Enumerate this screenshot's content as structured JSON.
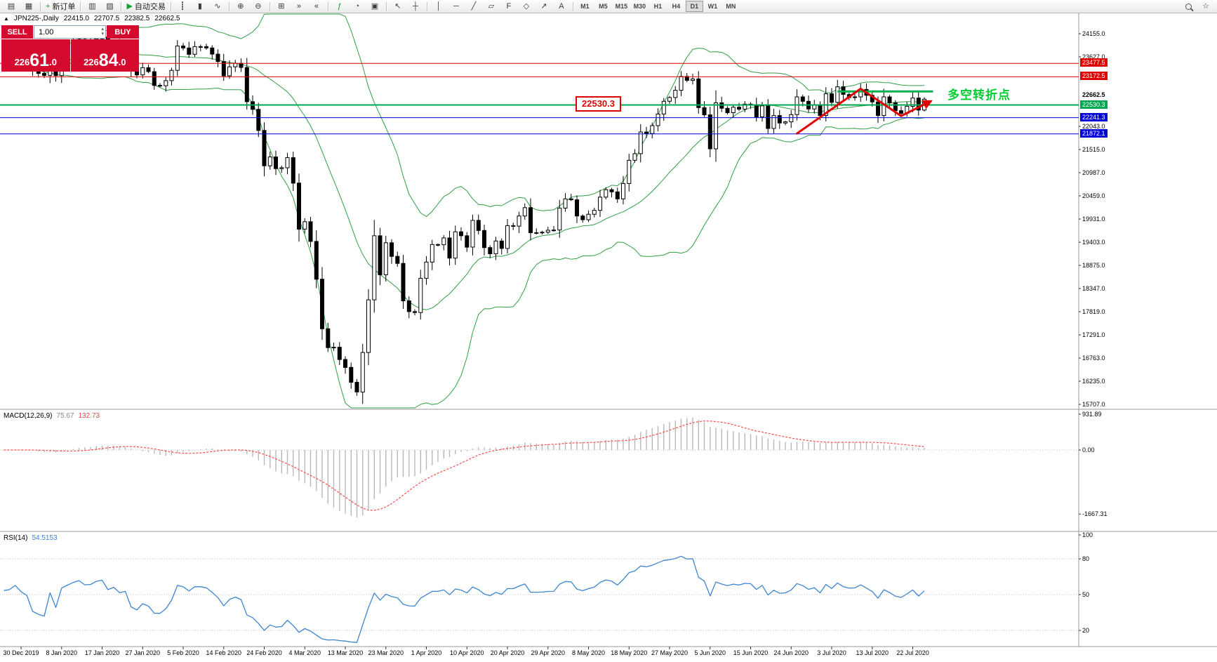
{
  "toolbar": {
    "items": [
      {
        "name": "new-chart",
        "glyph": "▤"
      },
      {
        "name": "chart-profiles",
        "glyph": "▦"
      },
      {
        "sep": true
      },
      {
        "name": "new-order",
        "glyph": "+",
        "glyph_color": "#18a038",
        "label": "新订单"
      },
      {
        "sep": true
      },
      {
        "name": "market-watch",
        "glyph": "▥"
      },
      {
        "name": "data-window",
        "glyph": "▧"
      },
      {
        "sep": true
      },
      {
        "name": "autotrading",
        "glyph": "▶",
        "glyph_color": "#18a038",
        "label": "自动交易"
      },
      {
        "sep": true
      },
      {
        "name": "bars-chart-type",
        "glyph": "┋"
      },
      {
        "name": "candles-chart-type",
        "glyph": "▮"
      },
      {
        "name": "line-chart-type",
        "glyph": "∿"
      },
      {
        "sep": true
      },
      {
        "name": "zoom-in",
        "glyph": "⊕"
      },
      {
        "name": "zoom-out",
        "glyph": "⊖"
      },
      {
        "sep": true
      },
      {
        "name": "tile-windows",
        "glyph": "⊞"
      },
      {
        "name": "auto-scroll",
        "glyph": "»"
      },
      {
        "name": "chart-shift",
        "glyph": "«"
      },
      {
        "sep": true
      },
      {
        "name": "indicators",
        "glyph": "ƒ",
        "glyph_color": "#18a038"
      },
      {
        "name": "periods",
        "glyph": "◔"
      },
      {
        "name": "templates",
        "glyph": "▣"
      },
      {
        "sep": true
      },
      {
        "name": "cursor",
        "glyph": "↖"
      },
      {
        "name": "crosshair",
        "glyph": "┼"
      },
      {
        "sep": true
      },
      {
        "name": "vertical-line-tool",
        "glyph": "│"
      },
      {
        "name": "horizontal-line-tool",
        "glyph": "─"
      },
      {
        "name": "trendline-tool",
        "glyph": "╱"
      },
      {
        "name": "channel-tool",
        "glyph": "▱"
      },
      {
        "name": "fibonacci-tool",
        "glyph": "F"
      },
      {
        "name": "shapes-tool",
        "glyph": "◇"
      },
      {
        "name": "arrows-tool",
        "glyph": "↗"
      },
      {
        "name": "text-tool",
        "glyph": "A"
      },
      {
        "sep": true
      }
    ],
    "timeframes": [
      "M1",
      "M5",
      "M15",
      "M30",
      "H1",
      "H4",
      "D1",
      "W1",
      "MN"
    ],
    "active_timeframe": "D1",
    "right_items": [
      {
        "name": "search",
        "css": "mag"
      },
      {
        "name": "favorites",
        "glyph": "☆"
      }
    ]
  },
  "trade_panel": {
    "sell_label": "SELL",
    "buy_label": "BUY",
    "volume": "1.00",
    "sell_price": "22661.0",
    "buy_price": "22684.0"
  },
  "chart_header": {
    "collapse_icon": "▲",
    "symbol_timeframe": "JPN225-,Daily",
    "open": "22415.0",
    "high": "22707.5",
    "low": "22382.5",
    "close": "22662.5"
  },
  "indicators": {
    "macd_label": "MACD(12,26,9)",
    "macd_main": "75.67",
    "macd_signal": "132.73",
    "rsi_label": "RSI(14)",
    "rsi_value": "54.5153"
  },
  "price_axis": {
    "ticks": [
      "24155.0",
      "23627.0",
      "22043.0",
      "21515.0",
      "20987.0",
      "20459.0",
      "19931.0",
      "19403.0",
      "18875.0",
      "18347.0",
      "17819.0",
      "17291.0",
      "16763.0",
      "16235.0",
      "15707.0"
    ],
    "close_label": {
      "label": "22662.5",
      "price": 22662.5
    }
  },
  "macd_axis": [
    {
      "label": "931.89",
      "value": 931.89
    },
    {
      "label": "0.00",
      "value": 0
    },
    {
      "label": "-1667.31",
      "value": -1667.31
    }
  ],
  "rsi_axis": [
    {
      "label": "100",
      "value": 100
    },
    {
      "label": "80",
      "value": 80
    },
    {
      "label": "50",
      "value": 50
    },
    {
      "label": "20",
      "value": 20
    }
  ],
  "annotations": {
    "price_label": "22530.3",
    "turning_point": "多空转折点",
    "turning_point_color": "#00cc33",
    "zigzag": {
      "color": "#e00000",
      "points": [
        [
          134,
          21880
        ],
        [
          145,
          22900
        ],
        [
          152,
          22280
        ],
        [
          157,
          22610
        ]
      ]
    },
    "green_segment": {
      "from": 141,
      "to": 157.5,
      "price": 22840,
      "color": "#00b050"
    }
  },
  "chart_data": {
    "type": "candlestick",
    "symbol": "JPN225-",
    "timeframe": "Daily",
    "ohlc": {
      "open": 22415.0,
      "high": 22707.5,
      "low": 22382.5,
      "close": 22662.5
    },
    "first_open": 23690,
    "closes": [
      23650,
      23600,
      23320,
      23250,
      23205,
      23580,
      23200,
      23740,
      23850,
      23950,
      24025,
      23920,
      23930,
      24040,
      24080,
      23860,
      23930,
      23795,
      23830,
      23340,
      23215,
      23380,
      23290,
      22977,
      22970,
      23085,
      23320,
      23875,
      23830,
      23685,
      23860,
      23860,
      23830,
      23690,
      23520,
      23195,
      23400,
      23480,
      23385,
      22605,
      22430,
      21950,
      21143,
      21345,
      21080,
      21100,
      21330,
      20750,
      19700,
      19870,
      19420,
      18560,
      17430,
      17000,
      17010,
      16730,
      16550,
      16210,
      15990,
      16890,
      18090,
      19550,
      18660,
      19390,
      19080,
      18920,
      18065,
      17820,
      17800,
      18580,
      18950,
      19350,
      19345,
      19500,
      19040,
      19640,
      19550,
      19290,
      19900,
      19670,
      19280,
      19140,
      19430,
      19260,
      19780,
      19770,
      20000,
      20190,
      19620,
      19620,
      19630,
      19675,
      19680,
      20180,
      20390,
      20370,
      20000,
      19915,
      20040,
      20130,
      20430,
      20600,
      20550,
      20390,
      20740,
      21270,
      21420,
      21915,
      21880,
      22060,
      22325,
      22615,
      22700,
      22865,
      23180,
      23090,
      23125,
      22470,
      22305,
      21530,
      22580,
      22455,
      22355,
      22480,
      22435,
      22550,
      22535,
      22260,
      22510,
      21995,
      22290,
      22120,
      22145,
      22310,
      22715,
      22615,
      22440,
      22530,
      22290,
      22785,
      22590,
      22945,
      22770,
      22700,
      22715,
      22885,
      22750,
      22600,
      22290,
      22715,
      22580,
      22400,
      22340,
      22500,
      22690,
      22415,
      22662.5
    ],
    "last_candle": {
      "open": 22415.0,
      "high": 22707.5,
      "low": 22382.5,
      "close": 22662.5
    },
    "x_labels": [
      "30 Dec 2019",
      "8 Jan 2020",
      "17 Jan 2020",
      "27 Jan 2020",
      "5 Feb 2020",
      "14 Feb 2020",
      "24 Feb 2020",
      "4 Mar 2020",
      "13 Mar 2020",
      "23 Mar 2020",
      "1 Apr 2020",
      "10 Apr 2020",
      "20 Apr 2020",
      "29 Apr 2020",
      "8 May 2020",
      "18 May 2020",
      "27 May 2020",
      "5 Jun 2020",
      "15 Jun 2020",
      "24 Jun 2020",
      "3 Jul 2020",
      "13 Jul 2020",
      "22 Jul 2020"
    ],
    "label_every": 7,
    "price_lines": [
      {
        "label": "23477.5",
        "price": 23477.5,
        "color": "#e00000",
        "width": 1
      },
      {
        "label": "23172.5",
        "price": 23172.5,
        "color": "#e00000",
        "width": 1
      },
      {
        "label": "22530.3",
        "price": 22530.3,
        "color": "#00a651",
        "width": 2
      },
      {
        "label": "22241.3",
        "price": 22241.3,
        "color": "#0000d8",
        "width": 1
      },
      {
        "label": "21872.1",
        "price": 21872.1,
        "color": "#0000d8",
        "width": 1
      }
    ],
    "bollinger": {
      "period": 20,
      "deviation": 2,
      "color": "#2f9e44"
    },
    "macd": {
      "fast": 12,
      "slow": 26,
      "signal": 9,
      "histogram_color": "#b8b8b8",
      "signal_color": "#ff4d4d"
    },
    "rsi": {
      "period": 14,
      "color": "#3d85d0",
      "levels": [
        80,
        50,
        20
      ]
    },
    "colors": {
      "up": "#ffffff",
      "down": "#000000",
      "outline": "#000000",
      "background": "#ffffff"
    }
  }
}
